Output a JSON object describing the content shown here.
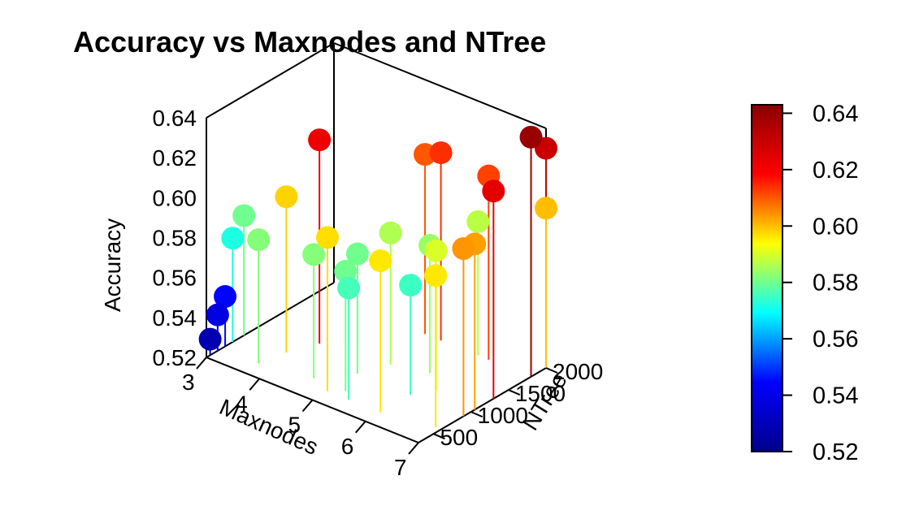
{
  "chart_data": {
    "type": "scatter",
    "title": "Accuracy vs Maxnodes and NTree",
    "xlabel": "Maxnodes",
    "ylabel": "NTree",
    "zlabel": "Accuracy",
    "xlim": [
      3,
      7
    ],
    "ylim": [
      300,
      2000
    ],
    "zlim": [
      0.52,
      0.64
    ],
    "x_ticks": [
      "3",
      "4",
      "5",
      "6",
      "7"
    ],
    "y_ticks": [
      "500",
      "1000",
      "1500",
      "2000"
    ],
    "z_ticks": [
      "0.52",
      "0.54",
      "0.56",
      "0.58",
      "0.60",
      "0.62",
      "0.64"
    ],
    "colorbar": {
      "ticks": [
        "0.52",
        "0.54",
        "0.56",
        "0.58",
        "0.60",
        "0.62",
        "0.64"
      ],
      "range": [
        0.52,
        0.643
      ],
      "colors": [
        "#00008B",
        "#0000FF",
        "#00FFFF",
        "#FFFF00",
        "#FF0000",
        "#8B0000"
      ]
    },
    "points": [
      {
        "x": 3.0,
        "y": 350,
        "z": 0.528
      },
      {
        "x": 3.0,
        "y": 450,
        "z": 0.538
      },
      {
        "x": 3.0,
        "y": 550,
        "z": 0.545
      },
      {
        "x": 3.0,
        "y": 650,
        "z": 0.572
      },
      {
        "x": 3.0,
        "y": 800,
        "z": 0.58
      },
      {
        "x": 3.7,
        "y": 500,
        "z": 0.582
      },
      {
        "x": 3.8,
        "y": 800,
        "z": 0.598
      },
      {
        "x": 4.0,
        "y": 1100,
        "z": 0.622
      },
      {
        "x": 4.6,
        "y": 600,
        "z": 0.582
      },
      {
        "x": 5.0,
        "y": 500,
        "z": 0.597
      },
      {
        "x": 5.0,
        "y": 900,
        "z": 0.58
      },
      {
        "x": 5.2,
        "y": 600,
        "z": 0.58
      },
      {
        "x": 5.4,
        "y": 500,
        "z": 0.576
      },
      {
        "x": 5.2,
        "y": 1200,
        "z": 0.586
      },
      {
        "x": 6.0,
        "y": 500,
        "z": 0.596
      },
      {
        "x": 6.0,
        "y": 900,
        "z": 0.575
      },
      {
        "x": 5.0,
        "y": 1800,
        "z": 0.61
      },
      {
        "x": 5.3,
        "y": 1800,
        "z": 0.614
      },
      {
        "x": 5.8,
        "y": 1300,
        "z": 0.584
      },
      {
        "x": 6.2,
        "y": 1100,
        "z": 0.59
      },
      {
        "x": 6.0,
        "y": 1800,
        "z": 0.587
      },
      {
        "x": 6.2,
        "y": 1800,
        "z": 0.612
      },
      {
        "x": 6.9,
        "y": 600,
        "z": 0.596
      },
      {
        "x": 7.0,
        "y": 900,
        "z": 0.604
      },
      {
        "x": 7.0,
        "y": 1050,
        "z": 0.603
      },
      {
        "x": 7.0,
        "y": 1300,
        "z": 0.624
      },
      {
        "x": 7.0,
        "y": 2000,
        "z": 0.63
      },
      {
        "x": 7.0,
        "y": 2000,
        "z": 0.6
      },
      {
        "x": 7.0,
        "y": 1800,
        "z": 0.64
      }
    ]
  }
}
